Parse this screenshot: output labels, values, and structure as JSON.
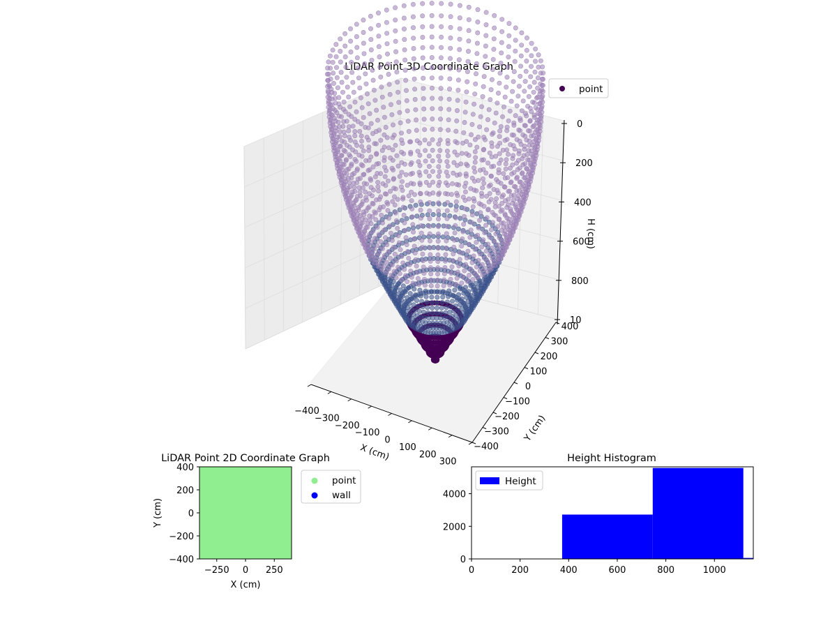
{
  "colors": {
    "viridis_dark": "#440154",
    "viridis_mid": "#3b528b",
    "point_light": "#9b7fb5",
    "scatter2d_point": "#90ee90",
    "scatter2d_wall": "#0000ff",
    "histogram_bar": "#0000ff",
    "pane": "#f2f2f2",
    "grid": "#d3d3d3"
  },
  "chart_data": [
    {
      "id": "lidar-3d",
      "type": "scatter",
      "title": "LiDAR Point 3D Coordinate Graph",
      "xlabel": "X (cm)",
      "ylabel": "Y (cm)",
      "zlabel": "H (cm)",
      "xlim": [
        -400,
        400
      ],
      "ylim": [
        -400,
        400
      ],
      "zlim": [
        1000,
        0
      ],
      "zinverted": true,
      "x_ticks": [
        "−400",
        "−300",
        "−200",
        "−100",
        "0",
        "100",
        "200",
        "300",
        "400"
      ],
      "y_ticks": [
        "−400",
        "−300",
        "−200",
        "−100",
        "0",
        "100",
        "200",
        "300",
        "400"
      ],
      "z_ticks": [
        "0",
        "200",
        "400",
        "600",
        "800",
        "1000"
      ],
      "z_visible_ticks": [
        "0",
        "200",
        "400",
        "600",
        "800",
        "10"
      ],
      "legend": {
        "entries": [
          "point"
        ],
        "placement": "top-right"
      },
      "series": [
        {
          "name": "point",
          "shape": "bowl of radial scan lines",
          "rays": 72,
          "samples_per_ray": 34,
          "h_range": [
            0,
            1160
          ],
          "radius_range": [
            0,
            400
          ],
          "colormap": "viridis"
        }
      ],
      "grid": true
    },
    {
      "id": "lidar-2d",
      "type": "scatter",
      "title": "LiDAR Point 2D Coordinate Graph",
      "xlabel": "X (cm)",
      "ylabel": "Y (cm)",
      "xlim": [
        -400,
        400
      ],
      "ylim": [
        -400,
        400
      ],
      "x_ticks": [
        -250,
        0,
        250
      ],
      "y_ticks": [
        -400,
        -200,
        0,
        200,
        400
      ],
      "legend": {
        "entries": [
          "point",
          "wall"
        ],
        "placement": "outside-right"
      },
      "series": [
        {
          "name": "point",
          "fills_region": true,
          "extent": [
            -400,
            400,
            -400,
            400
          ]
        },
        {
          "name": "wall",
          "values": []
        }
      ],
      "grid": false
    },
    {
      "id": "height-hist",
      "type": "bar",
      "title": "Height Histogram",
      "xlabel": "",
      "ylabel": "",
      "xlim": [
        0,
        1160
      ],
      "ylim": [
        0,
        5650
      ],
      "x_ticks": [
        0,
        200,
        400,
        600,
        800,
        1000
      ],
      "y_ticks": [
        0,
        2000,
        4000
      ],
      "legend": {
        "entries": [
          "Height"
        ],
        "placement": "top-left"
      },
      "bins": [
        {
          "from": 0,
          "to": 373,
          "count": 0
        },
        {
          "from": 373,
          "to": 746,
          "count": 2720
        },
        {
          "from": 746,
          "to": 1119,
          "count": 5580
        },
        {
          "from": 1119,
          "to": 1160,
          "count": 60
        }
      ],
      "series": [
        {
          "name": "Height",
          "values": [
            0,
            2720,
            5580,
            60
          ]
        }
      ],
      "grid": false
    }
  ]
}
